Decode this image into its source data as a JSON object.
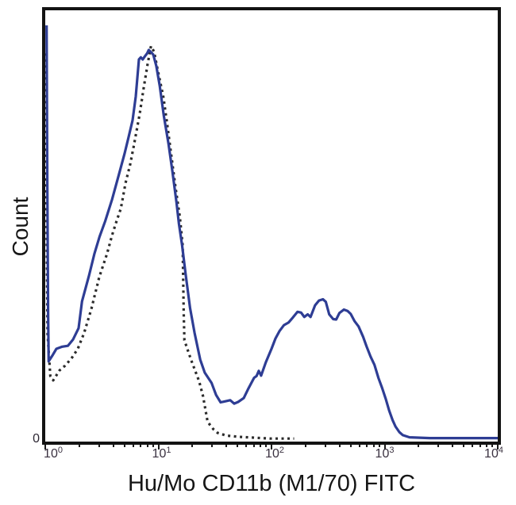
{
  "figure": {
    "x_axis_title": "Hu/Mo CD11b (M1/70) FITC",
    "y_axis_title": "Count",
    "y_zero_label": "0",
    "axis_color": "#131313",
    "background_color": "#ffffff"
  },
  "chart_data": {
    "type": "line",
    "subtype": "flow-cytometry-histogram-overlay",
    "title": "",
    "xlabel": "Hu/Mo CD11b (M1/70) FITC",
    "ylabel": "Count",
    "x_scale": "log10",
    "x_range": [
      1,
      10000
    ],
    "x_tick_exponents": [
      "0",
      "1",
      "2",
      "3",
      "4"
    ],
    "x_tick_labels": [
      "10^0",
      "10^1",
      "10^2",
      "10^3",
      "10^4"
    ],
    "y_tick_labels": [
      "0"
    ],
    "grid": false,
    "legend": "none",
    "point_format": "[log10(x), relative_count_fraction_of_axis_height]",
    "series": [
      {
        "name": "black-dotted-histogram",
        "color": "#2b2b2b",
        "line_style": "dotted",
        "peaks": [
          {
            "x_log10": 0.935,
            "height": 0.917,
            "note": "main peak ~x=8.6"
          }
        ],
        "points": [
          [
            0.006,
            0.9
          ],
          [
            0.012,
            0.5
          ],
          [
            0.02,
            0.25
          ],
          [
            0.045,
            0.152
          ],
          [
            0.07,
            0.142
          ],
          [
            0.126,
            0.165
          ],
          [
            0.175,
            0.176
          ],
          [
            0.232,
            0.193
          ],
          [
            0.288,
            0.215
          ],
          [
            0.344,
            0.252
          ],
          [
            0.407,
            0.307
          ],
          [
            0.477,
            0.381
          ],
          [
            0.547,
            0.436
          ],
          [
            0.59,
            0.478
          ],
          [
            0.63,
            0.511
          ],
          [
            0.668,
            0.54
          ],
          [
            0.71,
            0.6
          ],
          [
            0.75,
            0.642
          ],
          [
            0.786,
            0.69
          ],
          [
            0.835,
            0.76
          ],
          [
            0.87,
            0.82
          ],
          [
            0.905,
            0.876
          ],
          [
            0.935,
            0.917
          ],
          [
            0.962,
            0.904
          ],
          [
            0.992,
            0.864
          ],
          [
            1.045,
            0.798
          ],
          [
            1.08,
            0.732
          ],
          [
            1.115,
            0.662
          ],
          [
            1.15,
            0.592
          ],
          [
            1.19,
            0.52
          ],
          [
            1.215,
            0.455
          ],
          [
            1.224,
            0.3
          ],
          [
            1.23,
            0.235
          ],
          [
            1.29,
            0.189
          ],
          [
            1.36,
            0.14
          ],
          [
            1.395,
            0.105
          ],
          [
            1.435,
            0.046
          ],
          [
            1.485,
            0.029
          ],
          [
            1.525,
            0.02
          ],
          [
            1.6,
            0.014
          ],
          [
            1.71,
            0.011
          ],
          [
            1.85,
            0.009
          ],
          [
            1.99,
            0.007
          ],
          [
            2.1,
            0.007
          ],
          [
            2.2,
            0.007
          ]
        ]
      },
      {
        "name": "blue-solid-histogram",
        "color": "#2e3d94",
        "line_style": "solid",
        "peaks": [
          {
            "x_log10": 0.915,
            "height": 0.908,
            "note": "main peak ~x=8.2"
          },
          {
            "x_log10": 2.455,
            "height": 0.33,
            "note": "positive population peak ~x=285"
          }
        ],
        "points": [
          [
            0.012,
            0.965
          ],
          [
            0.018,
            0.6
          ],
          [
            0.025,
            0.3
          ],
          [
            0.03,
            0.186
          ],
          [
            0.06,
            0.198
          ],
          [
            0.098,
            0.215
          ],
          [
            0.15,
            0.22
          ],
          [
            0.2,
            0.222
          ],
          [
            0.246,
            0.237
          ],
          [
            0.295,
            0.263
          ],
          [
            0.325,
            0.325
          ],
          [
            0.386,
            0.384
          ],
          [
            0.435,
            0.436
          ],
          [
            0.48,
            0.475
          ],
          [
            0.53,
            0.511
          ],
          [
            0.59,
            0.561
          ],
          [
            0.65,
            0.618
          ],
          [
            0.7,
            0.667
          ],
          [
            0.737,
            0.706
          ],
          [
            0.772,
            0.745
          ],
          [
            0.8,
            0.8
          ],
          [
            0.828,
            0.886
          ],
          [
            0.845,
            0.891
          ],
          [
            0.862,
            0.886
          ],
          [
            0.88,
            0.893
          ],
          [
            0.9,
            0.9
          ],
          [
            0.915,
            0.908
          ],
          [
            0.938,
            0.902
          ],
          [
            0.955,
            0.897
          ],
          [
            0.982,
            0.871
          ],
          [
            1.012,
            0.825
          ],
          [
            1.048,
            0.756
          ],
          [
            1.09,
            0.69
          ],
          [
            1.125,
            0.625
          ],
          [
            1.16,
            0.555
          ],
          [
            1.182,
            0.505
          ],
          [
            1.21,
            0.455
          ],
          [
            1.24,
            0.39
          ],
          [
            1.28,
            0.31
          ],
          [
            1.32,
            0.252
          ],
          [
            1.37,
            0.19
          ],
          [
            1.41,
            0.16
          ],
          [
            1.47,
            0.136
          ],
          [
            1.51,
            0.108
          ],
          [
            1.55,
            0.091
          ],
          [
            1.6,
            0.094
          ],
          [
            1.635,
            0.096
          ],
          [
            1.67,
            0.088
          ],
          [
            1.705,
            0.092
          ],
          [
            1.755,
            0.101
          ],
          [
            1.796,
            0.123
          ],
          [
            1.846,
            0.148
          ],
          [
            1.868,
            0.152
          ],
          [
            1.888,
            0.164
          ],
          [
            1.908,
            0.153
          ],
          [
            1.95,
            0.184
          ],
          [
            2.0,
            0.215
          ],
          [
            2.035,
            0.239
          ],
          [
            2.07,
            0.256
          ],
          [
            2.11,
            0.27
          ],
          [
            2.15,
            0.276
          ],
          [
            2.19,
            0.288
          ],
          [
            2.23,
            0.301
          ],
          [
            2.262,
            0.299
          ],
          [
            2.29,
            0.289
          ],
          [
            2.32,
            0.295
          ],
          [
            2.345,
            0.289
          ],
          [
            2.385,
            0.316
          ],
          [
            2.42,
            0.327
          ],
          [
            2.455,
            0.33
          ],
          [
            2.48,
            0.324
          ],
          [
            2.51,
            0.295
          ],
          [
            2.545,
            0.284
          ],
          [
            2.572,
            0.283
          ],
          [
            2.6,
            0.298
          ],
          [
            2.64,
            0.306
          ],
          [
            2.672,
            0.303
          ],
          [
            2.7,
            0.296
          ],
          [
            2.735,
            0.279
          ],
          [
            2.77,
            0.267
          ],
          [
            2.81,
            0.243
          ],
          [
            2.84,
            0.221
          ],
          [
            2.876,
            0.197
          ],
          [
            2.91,
            0.178
          ],
          [
            2.946,
            0.147
          ],
          [
            2.98,
            0.123
          ],
          [
            3.01,
            0.099
          ],
          [
            3.04,
            0.072
          ],
          [
            3.07,
            0.05
          ],
          [
            3.096,
            0.035
          ],
          [
            3.13,
            0.022
          ],
          [
            3.16,
            0.015
          ],
          [
            3.22,
            0.01
          ],
          [
            3.4,
            0.008
          ],
          [
            3.7,
            0.008
          ],
          [
            4.0,
            0.008
          ]
        ]
      }
    ]
  }
}
